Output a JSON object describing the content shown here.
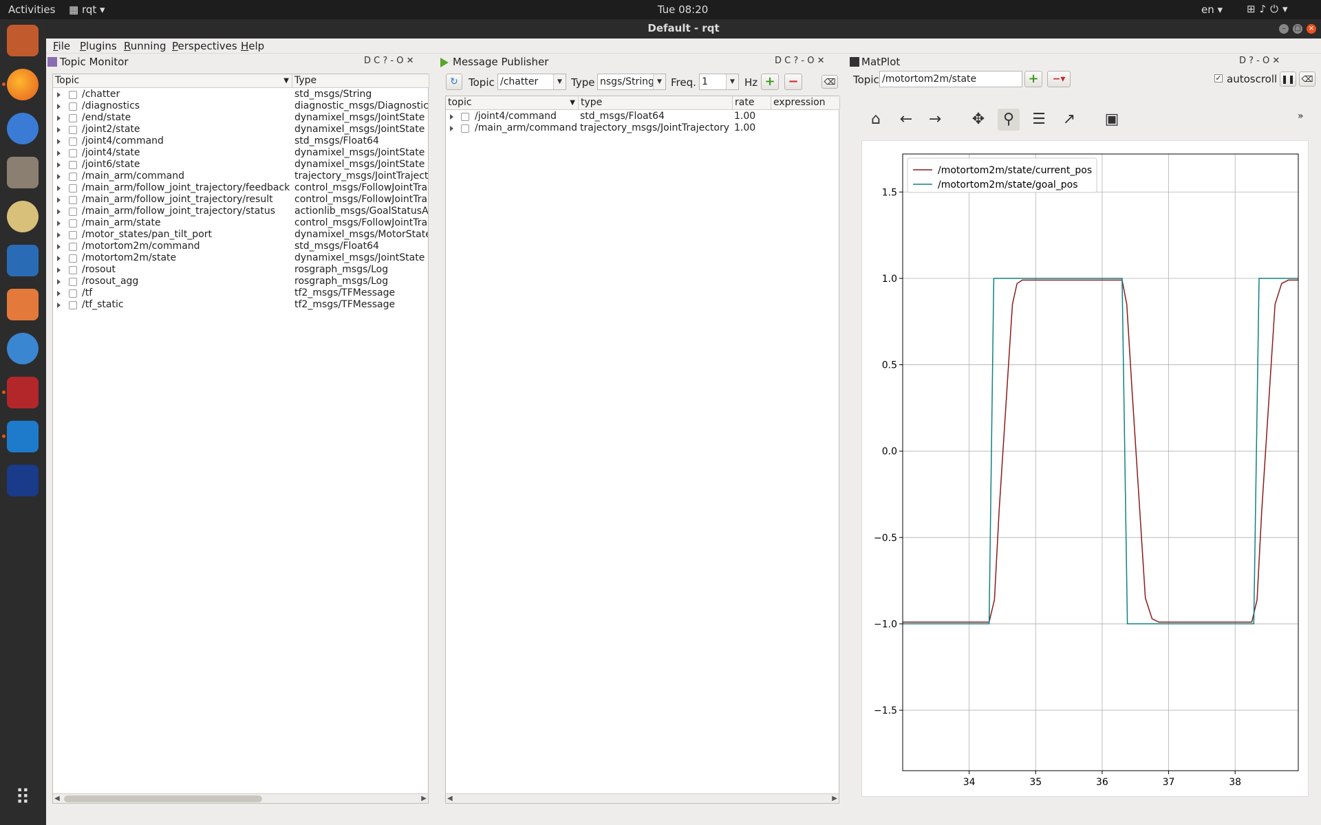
{
  "system": {
    "activities": "Activities",
    "app_menu": "rqt",
    "clock": "Tue 08:20",
    "lang": "en"
  },
  "window": {
    "title": "Default - rqt"
  },
  "menu": [
    "File",
    "Plugins",
    "Running",
    "Perspectives",
    "Help"
  ],
  "topic_monitor": {
    "title": "Topic Monitor",
    "controls": "D C ? - O ✕",
    "headers": [
      "Topic",
      "Type"
    ],
    "rows": [
      {
        "topic": "/chatter",
        "type": "std_msgs/String"
      },
      {
        "topic": "/diagnostics",
        "type": "diagnostic_msgs/Diagnostic/"
      },
      {
        "topic": "/end/state",
        "type": "dynamixel_msgs/JointState"
      },
      {
        "topic": "/joint2/state",
        "type": "dynamixel_msgs/JointState"
      },
      {
        "topic": "/joint4/command",
        "type": "std_msgs/Float64"
      },
      {
        "topic": "/joint4/state",
        "type": "dynamixel_msgs/JointState"
      },
      {
        "topic": "/joint6/state",
        "type": "dynamixel_msgs/JointState"
      },
      {
        "topic": "/main_arm/command",
        "type": "trajectory_msgs/JointTraject"
      },
      {
        "topic": "/main_arm/follow_joint_trajectory/feedback",
        "type": "control_msgs/FollowJointTra"
      },
      {
        "topic": "/main_arm/follow_joint_trajectory/result",
        "type": "control_msgs/FollowJointTra"
      },
      {
        "topic": "/main_arm/follow_joint_trajectory/status",
        "type": "actionlib_msgs/GoalStatusAr"
      },
      {
        "topic": "/main_arm/state",
        "type": "control_msgs/FollowJointTra"
      },
      {
        "topic": "/motor_states/pan_tilt_port",
        "type": "dynamixel_msgs/MotorState"
      },
      {
        "topic": "/motortom2m/command",
        "type": "std_msgs/Float64"
      },
      {
        "topic": "/motortom2m/state",
        "type": "dynamixel_msgs/JointState"
      },
      {
        "topic": "/rosout",
        "type": "rosgraph_msgs/Log"
      },
      {
        "topic": "/rosout_agg",
        "type": "rosgraph_msgs/Log"
      },
      {
        "topic": "/tf",
        "type": "tf2_msgs/TFMessage"
      },
      {
        "topic": "/tf_static",
        "type": "tf2_msgs/TFMessage"
      }
    ]
  },
  "publisher": {
    "title": "Message Publisher",
    "controls": "D C ? - O ✕",
    "topic_label": "Topic",
    "topic_value": "/chatter",
    "type_label": "Type",
    "type_value": "nsgs/String",
    "freq_label": "Freq.",
    "freq_value": "1",
    "hz_label": "Hz",
    "headers": [
      "topic",
      "type",
      "rate",
      "expression"
    ],
    "rows": [
      {
        "topic": "/joint4/command",
        "type": "std_msgs/Float64",
        "rate": "1.00",
        "expression": ""
      },
      {
        "topic": "/main_arm/command",
        "type": "trajectory_msgs/JointTrajectory",
        "rate": "1.00",
        "expression": ""
      }
    ]
  },
  "matplot": {
    "title": "MatPlot",
    "controls": "D ? - O ✕",
    "topic_label": "Topic",
    "topic_value": "/motortom2m/state",
    "autoscroll_label": "autoscroll",
    "overflow": "»",
    "toolbar": [
      "home-icon",
      "back-icon",
      "forward-icon",
      "pan-icon",
      "zoom-icon",
      "configure-icon",
      "edit-axis-icon",
      "save-icon"
    ]
  },
  "chart_data": {
    "type": "line",
    "title": "",
    "xlabel": "",
    "ylabel": "",
    "xlim": [
      33.0,
      38.95
    ],
    "ylim": [
      -1.85,
      1.72
    ],
    "xticks": [
      "34",
      "35",
      "36",
      "37",
      "38"
    ],
    "yticks": [
      "1.5",
      "1.0",
      "0.5",
      "0.0",
      "−0.5",
      "−1.0",
      "−1.5"
    ],
    "grid": true,
    "legend": "top-left",
    "series": [
      {
        "name": "/motortom2m/state/current_pos",
        "color": "#8b1a1a",
        "x": [
          33.0,
          33.2,
          33.4,
          33.6,
          33.8,
          34.0,
          34.2,
          34.3,
          34.38,
          34.45,
          34.55,
          34.65,
          34.72,
          34.8,
          35.0,
          35.5,
          36.0,
          36.3,
          36.37,
          36.45,
          36.55,
          36.65,
          36.75,
          36.85,
          37.0,
          37.5,
          38.0,
          38.25,
          38.33,
          38.4,
          38.5,
          38.6,
          38.7,
          38.8,
          38.95
        ],
        "y": [
          -0.99,
          -0.99,
          -0.99,
          -0.99,
          -0.99,
          -0.99,
          -0.99,
          -0.99,
          -0.86,
          -0.35,
          0.25,
          0.85,
          0.97,
          0.99,
          0.99,
          0.99,
          0.99,
          0.99,
          0.85,
          0.35,
          -0.25,
          -0.85,
          -0.97,
          -0.99,
          -0.99,
          -0.99,
          -0.99,
          -0.99,
          -0.86,
          -0.35,
          0.25,
          0.85,
          0.97,
          0.99,
          0.99
        ]
      },
      {
        "name": "/motortom2m/state/goal_pos",
        "color": "#108080",
        "x": [
          33.0,
          34.3,
          34.37,
          36.3,
          36.38,
          38.28,
          38.36,
          38.95
        ],
        "y": [
          -1.0,
          -1.0,
          1.0,
          1.0,
          -1.0,
          -1.0,
          1.0,
          1.0
        ]
      }
    ]
  }
}
